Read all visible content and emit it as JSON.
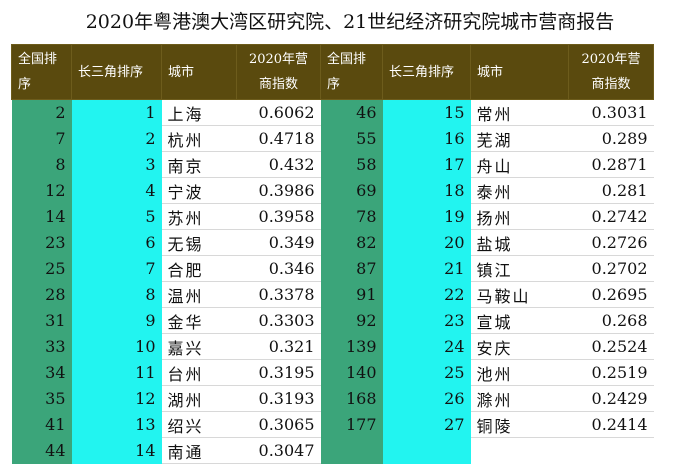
{
  "title": "2020年粤港澳大湾区研究院、21世纪经济研究院城市营商报告",
  "headers": {
    "national_rank": "全国排序",
    "yrd_rank": "长三角排序",
    "city": "城市",
    "index": "2020年营商指数"
  },
  "left_rows": [
    {
      "national": "2",
      "yrd": "1",
      "city": "上海",
      "index": "0.6062"
    },
    {
      "national": "7",
      "yrd": "2",
      "city": "杭州",
      "index": "0.4718"
    },
    {
      "national": "8",
      "yrd": "3",
      "city": "南京",
      "index": "0.432"
    },
    {
      "national": "12",
      "yrd": "4",
      "city": "宁波",
      "index": "0.3986"
    },
    {
      "national": "14",
      "yrd": "5",
      "city": "苏州",
      "index": "0.3958"
    },
    {
      "national": "23",
      "yrd": "6",
      "city": "无锡",
      "index": "0.349"
    },
    {
      "national": "25",
      "yrd": "7",
      "city": "合肥",
      "index": "0.346"
    },
    {
      "national": "28",
      "yrd": "8",
      "city": "温州",
      "index": "0.3378"
    },
    {
      "national": "31",
      "yrd": "9",
      "city": "金华",
      "index": "0.3303"
    },
    {
      "national": "33",
      "yrd": "10",
      "city": "嘉兴",
      "index": "0.321"
    },
    {
      "national": "34",
      "yrd": "11",
      "city": "台州",
      "index": "0.3195"
    },
    {
      "national": "35",
      "yrd": "12",
      "city": "湖州",
      "index": "0.3193"
    },
    {
      "national": "41",
      "yrd": "13",
      "city": "绍兴",
      "index": "0.3065"
    },
    {
      "national": "44",
      "yrd": "14",
      "city": "南通",
      "index": "0.3047"
    }
  ],
  "right_rows": [
    {
      "national": "46",
      "yrd": "15",
      "city": "常州",
      "index": "0.3031"
    },
    {
      "national": "55",
      "yrd": "16",
      "city": "芜湖",
      "index": "0.289"
    },
    {
      "national": "58",
      "yrd": "17",
      "city": "舟山",
      "index": "0.2871"
    },
    {
      "national": "69",
      "yrd": "18",
      "city": "泰州",
      "index": "0.281"
    },
    {
      "national": "78",
      "yrd": "19",
      "city": "扬州",
      "index": "0.2742"
    },
    {
      "national": "82",
      "yrd": "20",
      "city": "盐城",
      "index": "0.2726"
    },
    {
      "national": "87",
      "yrd": "21",
      "city": "镇江",
      "index": "0.2702"
    },
    {
      "national": "91",
      "yrd": "22",
      "city": "马鞍山",
      "index": "0.2695"
    },
    {
      "national": "92",
      "yrd": "23",
      "city": "宣城",
      "index": "0.268"
    },
    {
      "national": "139",
      "yrd": "24",
      "city": "安庆",
      "index": "0.2524"
    },
    {
      "national": "140",
      "yrd": "25",
      "city": "池州",
      "index": "0.2519"
    },
    {
      "national": "168",
      "yrd": "26",
      "city": "滁州",
      "index": "0.2429"
    },
    {
      "national": "177",
      "yrd": "27",
      "city": "铜陵",
      "index": "0.2414"
    },
    {
      "national": "",
      "yrd": "",
      "city": "",
      "index": ""
    }
  ],
  "colors": {
    "header_bg": "#5a4a0e",
    "national_col_bg": "#3ba57a",
    "yrd_col_bg": "#22f4f0"
  }
}
